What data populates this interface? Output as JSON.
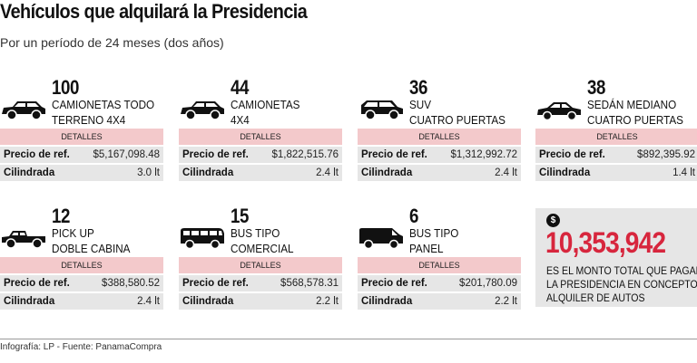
{
  "title": "Vehículos que alquilará la Presidencia",
  "subtitle": "Por un período de 24 meses (dos años)",
  "details_label": "DETALLES",
  "price_label": "Precio de ref.",
  "cc_label": "Cilindrada",
  "cards": [
    {
      "qty": "100",
      "line1": "CAMIONETAS TODO",
      "line2": "TERRENO 4X4",
      "price": "$5,167,098.48",
      "cc": "3.0 lt",
      "icon": "suv-icon"
    },
    {
      "qty": "44",
      "line1": "CAMIONETAS",
      "line2": "4X4",
      "price": "$1,822,515.76",
      "cc": "2.4 lt",
      "icon": "suv-icon"
    },
    {
      "qty": "36",
      "line1": "SUV",
      "line2": "CUATRO PUERTAS",
      "price": "$1,312,992.72",
      "cc": "2.4 lt",
      "icon": "suv-icon"
    },
    {
      "qty": "38",
      "line1": "SEDÁN MEDIANO",
      "line2": "CUATRO PUERTAS",
      "price": "$892,395.92",
      "cc": "1.4 lt",
      "icon": "sedan-icon"
    },
    {
      "qty": "12",
      "line1": "PICK UP",
      "line2": "DOBLE CABINA",
      "price": "$388,580.52",
      "cc": "2.4 lt",
      "icon": "pickup-icon"
    },
    {
      "qty": "15",
      "line1": "BUS TIPO",
      "line2": "COMERCIAL",
      "price": "$568,578.31",
      "cc": "2.2 lt",
      "icon": "bus-icon"
    },
    {
      "qty": "6",
      "line1": "BUS TIPO",
      "line2": "PANEL",
      "price": "$201,780.09",
      "cc": "2.2 lt",
      "icon": "van-icon"
    }
  ],
  "total": {
    "symbol": "$",
    "amount": "10,353,942",
    "note1": "ES EL MONTO TOTAL QUE PAGARÁ",
    "note2": "LA PRESIDENCIA EN CONCEPTO DE",
    "note3": "ALQUILER DE AUTOS"
  },
  "footer": "Infografía: LP - Fuente: PanamaCompra",
  "colors": {
    "accent": "#d7263d",
    "details_bg": "#f3c9cb",
    "row_bg": "#e6e6e6"
  }
}
